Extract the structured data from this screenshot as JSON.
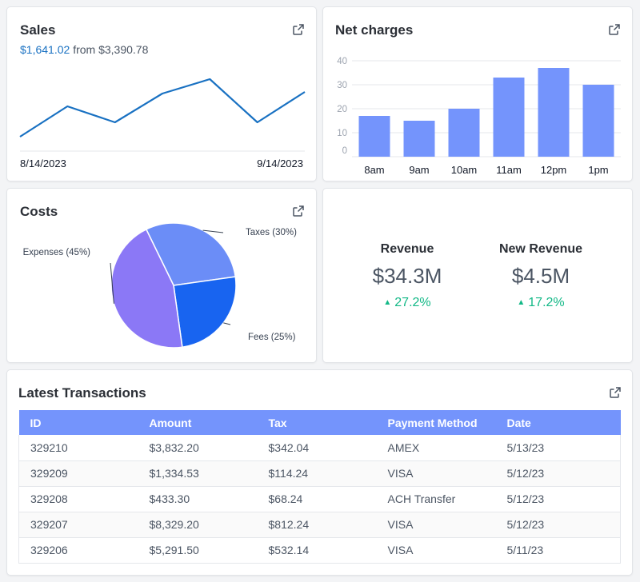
{
  "colors": {
    "accent": "#1971c2",
    "bar": "#7494fc",
    "positive": "#12b886",
    "header_bg": "#7494fc"
  },
  "icons": {
    "external_link": "external-link-icon",
    "trend_up": "triangle-up-icon"
  },
  "sales": {
    "title": "Sales",
    "value": "$1,641.02",
    "from_text": "from $3,390.78",
    "start_date": "8/14/2023",
    "end_date": "9/14/2023",
    "chart_data": {
      "type": "line",
      "values": [
        0,
        38,
        18,
        54,
        72,
        18,
        56
      ],
      "ylim": [
        0,
        80
      ]
    }
  },
  "net_charges": {
    "title": "Net charges",
    "chart_data": {
      "type": "bar",
      "categories": [
        "8am",
        "9am",
        "10am",
        "11am",
        "12pm",
        "1pm"
      ],
      "values": [
        17,
        15,
        20,
        33,
        37,
        30
      ],
      "ylim": [
        0,
        40
      ],
      "yticks": [
        40,
        30,
        20,
        10,
        0
      ],
      "grid": true
    }
  },
  "costs": {
    "title": "Costs",
    "chart_data": {
      "type": "pie",
      "slices": [
        {
          "label": "Taxes (30%)",
          "value": 30,
          "color": "#6b8df7"
        },
        {
          "label": "Fees (25%)",
          "value": 25,
          "color": "#1864f0"
        },
        {
          "label": "Expenses (45%)",
          "value": 45,
          "color": "#8b78f6"
        }
      ]
    }
  },
  "revenue": {
    "items": [
      {
        "label": "Revenue",
        "value": "$34.3M",
        "delta": "27.2%"
      },
      {
        "label": "New Revenue",
        "value": "$4.5M",
        "delta": "17.2%"
      }
    ]
  },
  "transactions": {
    "title": "Latest Transactions",
    "columns": [
      "ID",
      "Amount",
      "Tax",
      "Payment Method",
      "Date"
    ],
    "rows": [
      [
        "329210",
        "$3,832.20",
        "$342.04",
        "AMEX",
        "5/13/23"
      ],
      [
        "329209",
        "$1,334.53",
        "$114.24",
        "VISA",
        "5/12/23"
      ],
      [
        "329208",
        "$433.30",
        "$68.24",
        "ACH Transfer",
        "5/12/23"
      ],
      [
        "329207",
        "$8,329.20",
        "$812.24",
        "VISA",
        "5/12/23"
      ],
      [
        "329206",
        "$5,291.50",
        "$532.14",
        "VISA",
        "5/11/23"
      ]
    ]
  }
}
